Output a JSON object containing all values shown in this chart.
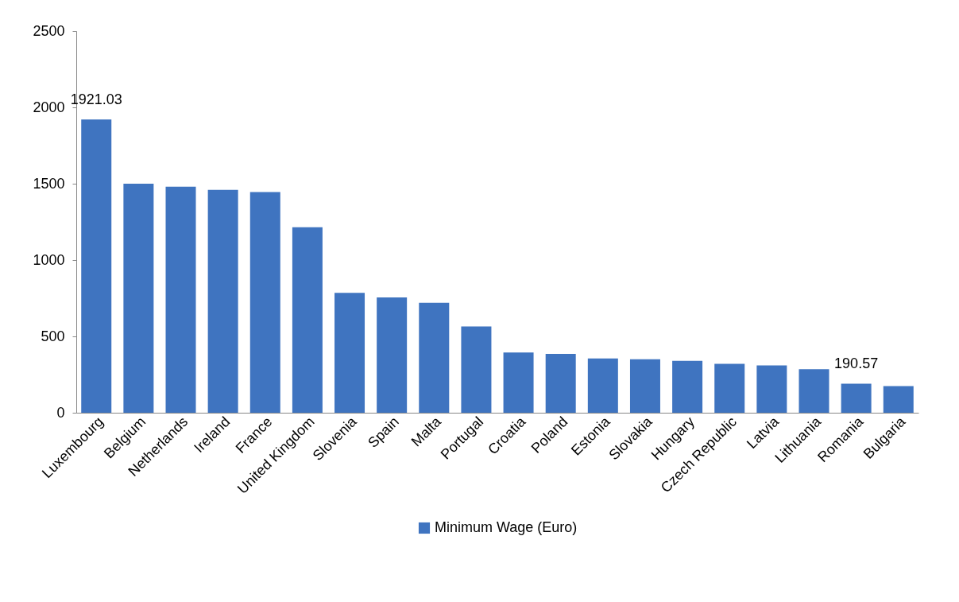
{
  "chart_data": {
    "type": "bar",
    "categories": [
      "Luxembourg",
      "Belgium",
      "Netherlands",
      "Ireland",
      "France",
      "United Kingdom",
      "Slovenia",
      "Spain",
      "Malta",
      "Portugal",
      "Croatia",
      "Poland",
      "Estonia",
      "Slovakia",
      "Hungary",
      "Czech Republic",
      "Latvia",
      "Lithuania",
      "Romania",
      "Bulgaria"
    ],
    "series": [
      {
        "name": "Minimum Wage (Euro)",
        "color": "#3f74c0",
        "values": [
          1921.03,
          1500,
          1480,
          1460,
          1445,
          1215,
          785,
          755,
          720,
          565,
          395,
          385,
          355,
          350,
          340,
          320,
          310,
          285,
          190.57,
          175
        ]
      }
    ],
    "value_labels": [
      "1921.03",
      null,
      null,
      null,
      null,
      null,
      null,
      null,
      null,
      null,
      null,
      null,
      null,
      null,
      null,
      null,
      null,
      null,
      "190.57",
      null
    ],
    "ylim": [
      0,
      2500
    ],
    "yticks": [
      0,
      500,
      1000,
      1500,
      2000,
      2500
    ],
    "grid": false,
    "legend": "bottom"
  }
}
